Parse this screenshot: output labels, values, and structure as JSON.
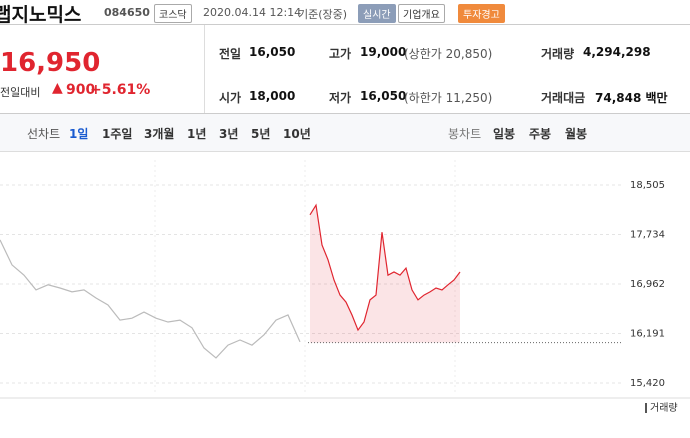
{
  "header": {
    "name": "랩지노믹스",
    "code": "084650",
    "market": "코스닥",
    "datetime": "2020.04.14 12:14",
    "basis": "기준(장중)",
    "buttons": [
      "실시간",
      "기업개요",
      "투자경고"
    ]
  },
  "price": {
    "current": "16,950",
    "change_label": "전일대비",
    "change": "900",
    "change_rate": "+5.61%"
  },
  "stats": [
    {
      "label": "전일",
      "value": "16,050"
    },
    {
      "label": "고가",
      "value": "19,000",
      "note": "(상한가 20,850)"
    },
    {
      "label": "거래량",
      "value": "4,294,298"
    },
    {
      "label": "시가",
      "value": "18,000"
    },
    {
      "label": "저가",
      "value": "16,050",
      "note": "(하한가 11,250)"
    },
    {
      "label": "거래대금",
      "value": "74,848 백만"
    }
  ],
  "tabs": {
    "line_label": "선차트",
    "periods": [
      "1일",
      "1주일",
      "3개월",
      "1년",
      "3년",
      "5년",
      "10년"
    ],
    "candle_label": "봉차트",
    "candles": [
      "일봉",
      "주봉",
      "월봉"
    ]
  },
  "chart_data": {
    "type": "line",
    "ylim": [
      15420,
      18505
    ],
    "yticks": [
      {
        "value": 15420,
        "label": "15,420"
      },
      {
        "value": 16191,
        "label": "16,191"
      },
      {
        "value": 16962,
        "label": "16,962"
      },
      {
        "value": 17734,
        "label": "17,734"
      },
      {
        "value": 18505,
        "label": "18,505"
      }
    ],
    "reference_line": 16050,
    "series": [
      {
        "color": "#bbbbbb",
        "values": [
          17650,
          17260,
          17100,
          16870,
          16950,
          16900,
          16840,
          16870,
          16745,
          16635,
          16400,
          16430,
          16525,
          16430,
          16370,
          16400,
          16280,
          15965,
          15810,
          16010,
          16090,
          16010,
          16170,
          16400,
          16480,
          16060
        ]
      },
      {
        "color": "#e0252f",
        "values": [
          18040,
          18190,
          17570,
          17340,
          17025,
          16790,
          16680,
          16480,
          16245,
          16370,
          16715,
          16790,
          17770,
          17100,
          17150,
          17100,
          17210,
          16870,
          16715,
          16790,
          16840,
          16900,
          16870,
          16950,
          17025,
          17150
        ]
      }
    ],
    "volume_label": "거래량"
  }
}
